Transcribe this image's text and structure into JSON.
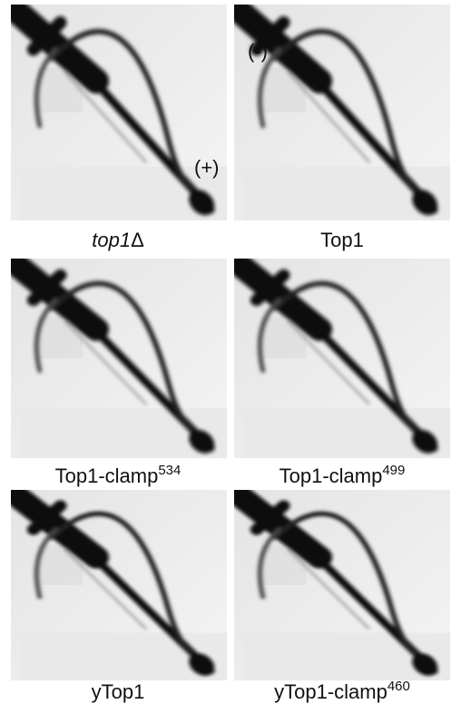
{
  "panels": [
    {
      "label": "top1",
      "suffix": "Δ"
    },
    {
      "label": "Top1"
    },
    {
      "label": "Top1-clamp",
      "superscript": "534"
    },
    {
      "label": "Top1-clamp",
      "superscript": "499"
    },
    {
      "label": "yTop1"
    },
    {
      "label": "yTop1-clamp",
      "superscript": "460"
    }
  ],
  "annotations": {
    "minus": "(-)",
    "plus": "(+)"
  }
}
